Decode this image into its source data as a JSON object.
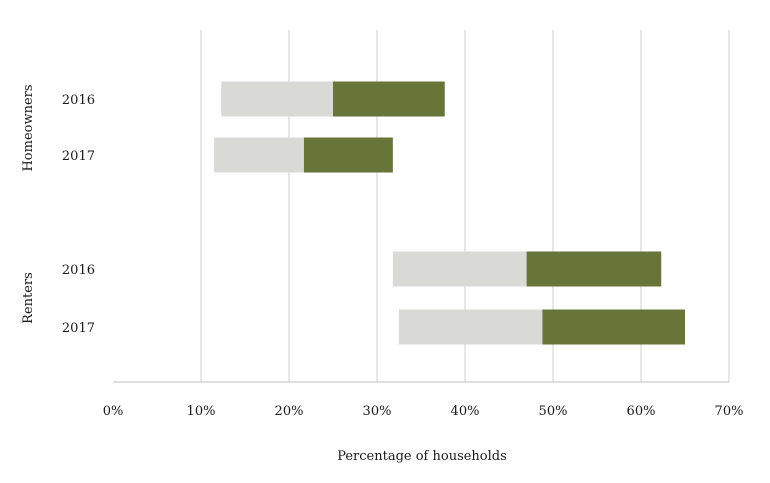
{
  "chart_data": {
    "type": "bar",
    "orientation": "horizontal",
    "stacked": true,
    "xlabel": "Percentage of households",
    "xlim": [
      0,
      70
    ],
    "x_unit": "%",
    "x_ticks": [
      0,
      10,
      20,
      30,
      40,
      50,
      60,
      70
    ],
    "x_tick_labels": [
      "0%",
      "10%",
      "20%",
      "30%",
      "40%",
      "50%",
      "60%",
      "70%"
    ],
    "grid": "vertical",
    "legend": "none",
    "groups": [
      {
        "label": "Homeowners",
        "categories": [
          "2016",
          "2017"
        ]
      },
      {
        "label": "Renters",
        "categories": [
          "2016",
          "2017"
        ]
      }
    ],
    "rows": [
      {
        "group": "Homeowners",
        "label": "2016",
        "start": 12.3,
        "light_end": 25.0,
        "dark_end": 37.7
      },
      {
        "group": "Homeowners",
        "label": "2017",
        "start": 11.5,
        "light_end": 21.7,
        "dark_end": 31.8
      },
      {
        "group": "Renters",
        "label": "2016",
        "start": 31.8,
        "light_end": 47.0,
        "dark_end": 62.3
      },
      {
        "group": "Renters",
        "label": "2017",
        "start": 32.5,
        "light_end": 48.8,
        "dark_end": 65.0
      }
    ],
    "colors": {
      "light": "#d9d9d6",
      "dark": "#687538",
      "grid": "#d0d0d0",
      "axis": "#bfbfbf"
    }
  }
}
